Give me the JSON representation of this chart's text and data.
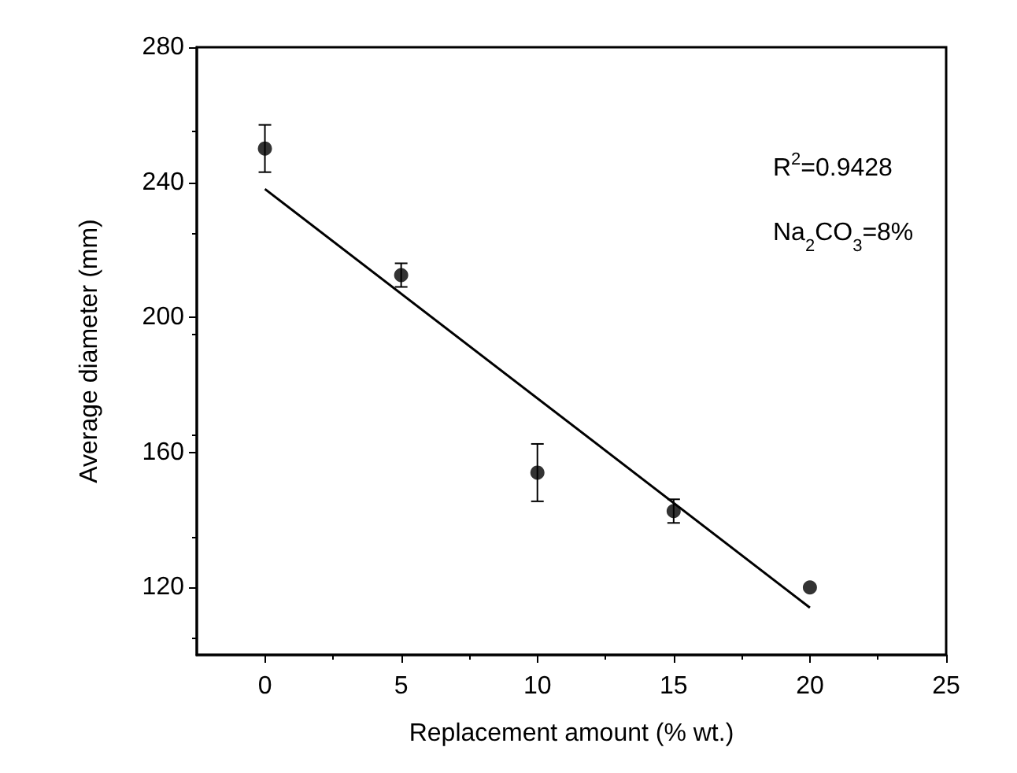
{
  "chart_data": {
    "type": "scatter",
    "xlabel": "Replacement amount (% wt.)",
    "ylabel": "Average diameter (mm)",
    "x": [
      0,
      5,
      10,
      15,
      20
    ],
    "series": [
      {
        "color": "#000000",
        "values": [
          250,
          212.5,
          154,
          142.6,
          120
        ],
        "errors": [
          7,
          3.5,
          8.5,
          3.5,
          null
        ],
        "marker": "circle"
      },
      {
        "type": "line",
        "color": "#000000",
        "x": [
          0,
          20
        ],
        "values": [
          238,
          114
        ],
        "marker": "none",
        "line_style": "solid"
      }
    ],
    "xlim": [
      -2.5,
      25
    ],
    "xticks": [
      0,
      5,
      10,
      15,
      20,
      25
    ],
    "ylim": [
      100,
      280
    ],
    "yticks": [
      120,
      160,
      200,
      240,
      280
    ],
    "grid": false,
    "annotations": [
      "R$^{2}$=0.9428",
      "Na$_{2}$CO$_{3}$=8%"
    ]
  }
}
